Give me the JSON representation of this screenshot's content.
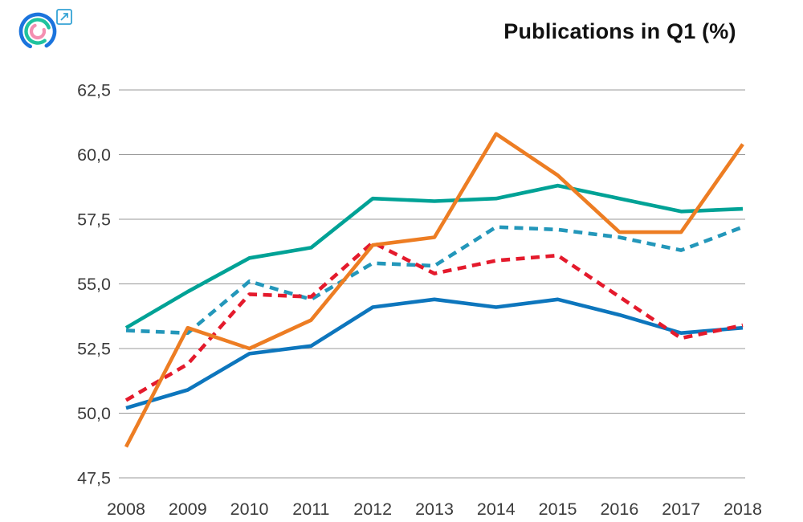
{
  "header": {
    "title": "Publications in Q1 (%)",
    "logo": {
      "outer_arc_color": "#1b74dd",
      "middle_arc_color": "#1fc39e",
      "inner_arc_color": "#f48fb1",
      "external_link_color": "#35a3d5"
    }
  },
  "chart_data": {
    "type": "line",
    "title": "Publications in Q1 (%)",
    "x": [
      2008,
      2009,
      2010,
      2011,
      2012,
      2013,
      2014,
      2015,
      2016,
      2017,
      2018
    ],
    "series": [
      {
        "name": "teal-solid",
        "style": "solid",
        "color": "#00a296",
        "values": [
          53.3,
          54.7,
          56.0,
          56.4,
          58.3,
          58.2,
          58.3,
          58.8,
          58.3,
          57.8,
          57.9
        ]
      },
      {
        "name": "blue-solid",
        "style": "solid",
        "color": "#0d76bd",
        "values": [
          50.2,
          50.9,
          52.3,
          52.6,
          54.1,
          54.4,
          54.1,
          54.4,
          53.8,
          53.1,
          53.3
        ]
      },
      {
        "name": "teal-dashed",
        "style": "dashed",
        "color": "#2397ba",
        "values": [
          53.2,
          53.1,
          55.1,
          54.4,
          55.8,
          55.7,
          57.2,
          57.1,
          56.8,
          56.3,
          57.2
        ]
      },
      {
        "name": "red-dashed",
        "style": "dashed",
        "color": "#e41a2c",
        "values": [
          50.5,
          51.9,
          54.6,
          54.5,
          56.6,
          55.4,
          55.9,
          56.1,
          54.5,
          52.9,
          53.4
        ]
      },
      {
        "name": "orange-solid",
        "style": "solid",
        "color": "#ed7d23",
        "values": [
          48.7,
          53.3,
          52.5,
          53.6,
          56.5,
          56.8,
          60.8,
          59.2,
          57.0,
          57.0,
          60.4
        ]
      }
    ],
    "ylim": [
      47.5,
      62.5
    ],
    "yticks": [
      62.5,
      60.0,
      57.5,
      55.0,
      52.5,
      50.0,
      47.5
    ],
    "ytick_labels": [
      "62,5",
      "60,0",
      "57,5",
      "55,0",
      "52,5",
      "50,0",
      "47,5"
    ],
    "xtick_labels": [
      "2008",
      "2009",
      "2010",
      "2011",
      "2012",
      "2013",
      "2014",
      "2015",
      "2016",
      "2017",
      "2018"
    ],
    "grid": "horizontal",
    "gridline_color": "#999999",
    "tick_label_color": "#3c3c3c",
    "legend": "none"
  }
}
